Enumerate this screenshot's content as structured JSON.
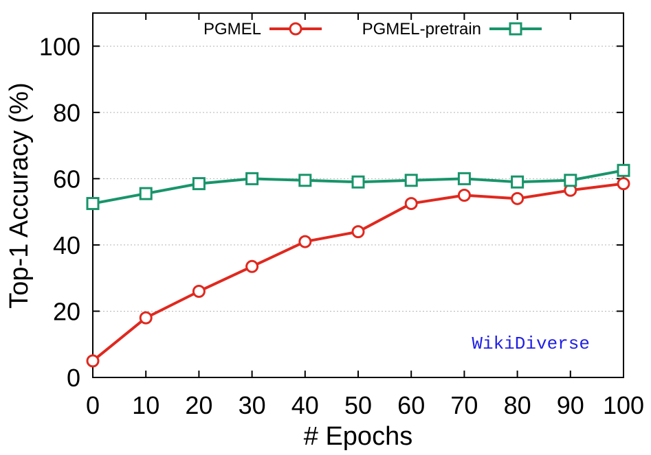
{
  "chart_data": {
    "type": "line",
    "xlabel": "# Epochs",
    "ylabel": "Top-1 Accuracy (%)",
    "x": [
      0,
      10,
      20,
      30,
      40,
      50,
      60,
      70,
      80,
      90,
      100
    ],
    "xlim": [
      0,
      100
    ],
    "ylim": [
      0,
      110
    ],
    "xticks": [
      "0",
      "10",
      "20",
      "30",
      "40",
      "50",
      "60",
      "70",
      "80",
      "90",
      "100"
    ],
    "yticks": [
      "0",
      "20",
      "40",
      "60",
      "80",
      "100"
    ],
    "grid": "horizontal dotted",
    "legend_position": "top",
    "annotation": {
      "text": "WikiDiverse",
      "color": "#1f1fe6"
    },
    "series": [
      {
        "name": "PGMEL",
        "marker": "circle",
        "color": "#e0281e",
        "values": [
          5,
          18,
          26,
          33.5,
          41,
          44,
          52.5,
          55,
          54,
          56.5,
          58.5
        ]
      },
      {
        "name": "PGMEL-pretrain",
        "marker": "square",
        "color": "#18946b",
        "values": [
          52.5,
          55.5,
          58.5,
          60,
          59.5,
          59,
          59.5,
          60,
          59,
          59.5,
          62.5
        ]
      }
    ]
  }
}
